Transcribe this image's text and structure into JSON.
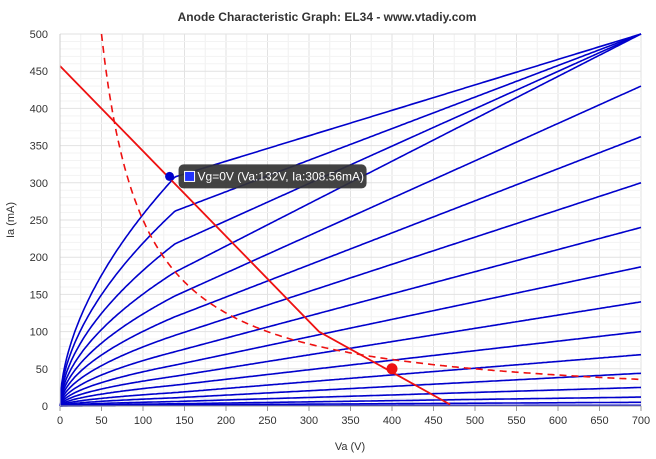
{
  "chart_data": {
    "type": "line",
    "title": "Anode Characteristic Graph: EL34 - www.vtadiy.com",
    "xlabel": "Va (V)",
    "ylabel": "Ia (mA)",
    "xlim": [
      0,
      700
    ],
    "ylim": [
      0,
      500
    ],
    "xticks": [
      "0",
      "50",
      "100",
      "150",
      "200",
      "250",
      "300",
      "350",
      "400",
      "450",
      "500",
      "550",
      "600",
      "650",
      "700"
    ],
    "yticks": [
      "0",
      "50",
      "100",
      "150",
      "200",
      "250",
      "300",
      "350",
      "400",
      "450",
      "500"
    ],
    "grid": true,
    "colors": {
      "curves": "#0000cc",
      "loadline": "#ee1111",
      "dissipation": "#ee1111",
      "tooltip_bg": "#333333",
      "tooltip_marker": "#2233ff"
    },
    "grid_curves": [
      {
        "end_value": 500,
        "knee_value": 308
      },
      {
        "end_value": 500,
        "knee_value": 262
      },
      {
        "end_value": 500,
        "knee_value": 218
      },
      {
        "end_value": 500,
        "knee_value": 180
      },
      {
        "end_value": 430,
        "knee_value": 148
      },
      {
        "end_value": 362,
        "knee_value": 120
      },
      {
        "end_value": 300,
        "knee_value": 95
      },
      {
        "end_value": 240,
        "knee_value": 73
      },
      {
        "end_value": 187,
        "knee_value": 55
      },
      {
        "end_value": 140,
        "knee_value": 40
      },
      {
        "end_value": 100,
        "knee_value": 28
      },
      {
        "end_value": 69,
        "knee_value": 18
      },
      {
        "end_value": 44,
        "knee_value": 11
      },
      {
        "end_value": 25,
        "knee_value": 6
      },
      {
        "end_value": 12,
        "knee_value": 3
      },
      {
        "end_value": 5,
        "knee_value": 1.5
      },
      {
        "end_value": 1,
        "knee_value": 0.5
      }
    ],
    "loadline": {
      "points": [
        [
          0,
          457
        ],
        [
          312,
          100
        ],
        [
          470,
          2
        ]
      ]
    },
    "dissipation_curve": {
      "power_watts": 25,
      "x_range": [
        50,
        700
      ]
    },
    "operating_point": {
      "x": 400,
      "y": 50
    },
    "highlight_point": {
      "x": 132,
      "y": 308.56
    },
    "tooltip": {
      "text": "Vg=0V (Va:132V, Ia:308.56mA)"
    }
  }
}
